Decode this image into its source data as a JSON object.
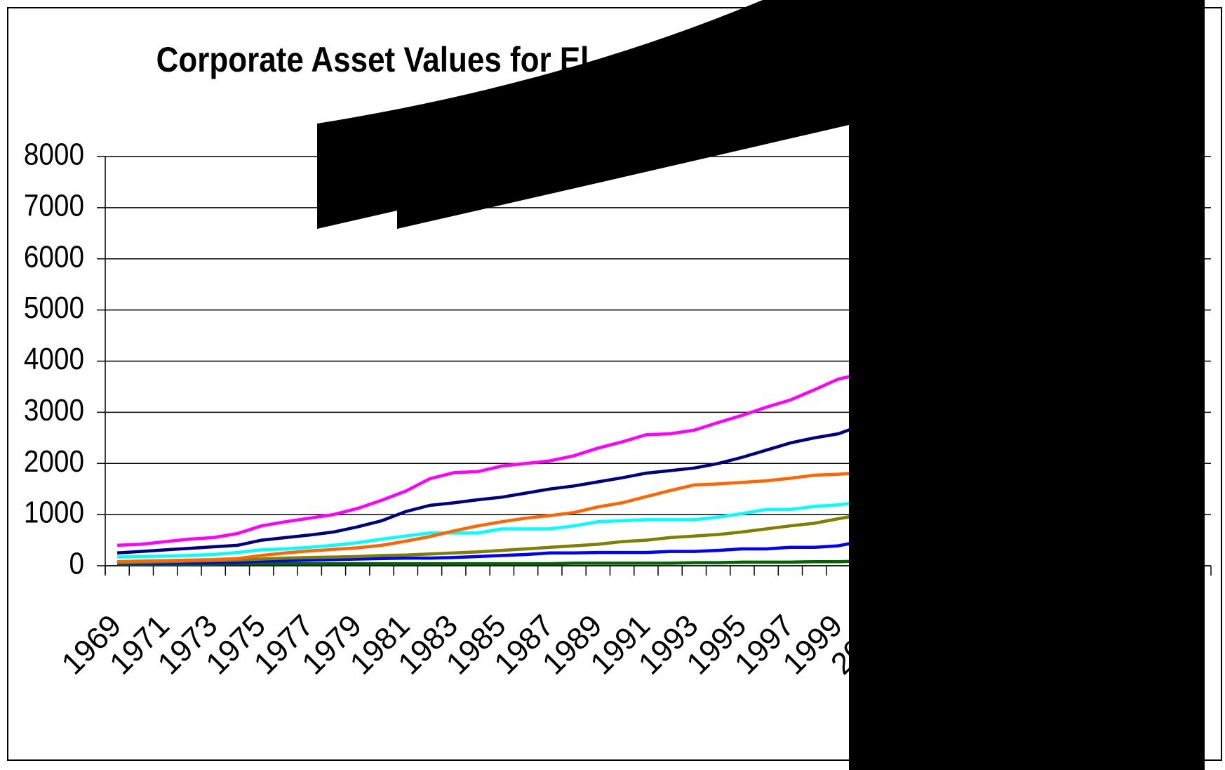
{
  "chart_data": {
    "type": "line",
    "title": "Corporate Asset Values for El",
    "categories": [
      "1969",
      null,
      "1971",
      null,
      "1973",
      null,
      "1975",
      null,
      "1977",
      null,
      "1979",
      null,
      "1981",
      null,
      "1983",
      null,
      "1985",
      null,
      "1987",
      null,
      "1989",
      null,
      "1991",
      null,
      "1993",
      null,
      "1995",
      null,
      "1997",
      null,
      "1999",
      null,
      "2001",
      null,
      null,
      null,
      null,
      null,
      null,
      null,
      null,
      null,
      null,
      null,
      null,
      null
    ],
    "series": [
      {
        "color": "#ff00ff",
        "values": [
          400,
          420,
          470,
          520,
          550,
          630,
          780,
          860,
          930,
          1000,
          1120,
          1280,
          1460,
          1700,
          1820,
          1840,
          1950,
          2000,
          2050,
          2150,
          2300,
          2420,
          2560,
          2580,
          2650,
          2800,
          2940,
          3100,
          3240,
          3440,
          3650,
          3750,
          null,
          null,
          null,
          null,
          null,
          null,
          null,
          null,
          null,
          null,
          null,
          null,
          null,
          null
        ]
      },
      {
        "color": "#000080",
        "values": [
          250,
          280,
          310,
          340,
          370,
          400,
          500,
          550,
          600,
          660,
          760,
          880,
          1060,
          1180,
          1230,
          1290,
          1340,
          1420,
          1500,
          1560,
          1640,
          1720,
          1810,
          1860,
          1910,
          2000,
          2120,
          2260,
          2400,
          2500,
          2580,
          2750,
          null,
          null,
          null,
          null,
          null,
          null,
          null,
          null,
          null,
          null,
          null,
          null,
          null,
          null
        ]
      },
      {
        "color": "#ff6600",
        "values": [
          80,
          90,
          100,
          110,
          120,
          140,
          200,
          250,
          290,
          320,
          350,
          400,
          480,
          570,
          680,
          780,
          860,
          930,
          980,
          1040,
          1150,
          1230,
          1350,
          1470,
          1580,
          1600,
          1630,
          1660,
          1710,
          1770,
          1790,
          1820,
          null,
          null,
          null,
          null,
          null,
          null,
          null,
          null,
          null,
          null,
          null,
          null,
          null,
          null
        ]
      },
      {
        "color": "#00ffff",
        "values": [
          170,
          180,
          190,
          200,
          220,
          260,
          310,
          330,
          360,
          400,
          450,
          520,
          580,
          640,
          640,
          640,
          720,
          720,
          720,
          780,
          860,
          880,
          900,
          900,
          900,
          950,
          1020,
          1100,
          1100,
          1160,
          1190,
          1250,
          null,
          null,
          null,
          null,
          null,
          null,
          null,
          null,
          null,
          null,
          null,
          null,
          null,
          null
        ]
      },
      {
        "color": "#808000",
        "values": [
          60,
          70,
          80,
          90,
          100,
          110,
          130,
          150,
          160,
          170,
          180,
          200,
          210,
          230,
          250,
          270,
          300,
          330,
          360,
          390,
          420,
          470,
          500,
          550,
          580,
          610,
          660,
          720,
          780,
          830,
          920,
          1000,
          null,
          null,
          null,
          null,
          null,
          null,
          null,
          null,
          null,
          null,
          null,
          null,
          null,
          null
        ]
      },
      {
        "color": "#0000ff",
        "values": [
          50,
          50,
          50,
          60,
          60,
          70,
          90,
          100,
          110,
          120,
          130,
          140,
          150,
          150,
          160,
          180,
          200,
          220,
          250,
          250,
          260,
          260,
          260,
          280,
          280,
          300,
          330,
          330,
          360,
          360,
          390,
          480,
          null,
          null,
          null,
          null,
          null,
          null,
          null,
          null,
          null,
          null,
          null,
          null,
          null,
          null
        ]
      },
      {
        "color": "#006400",
        "values": [
          30,
          30,
          30,
          30,
          30,
          40,
          40,
          40,
          40,
          40,
          40,
          40,
          40,
          40,
          40,
          40,
          40,
          40,
          40,
          50,
          50,
          50,
          50,
          50,
          60,
          60,
          70,
          70,
          70,
          80,
          80,
          90,
          null,
          null,
          null,
          null,
          null,
          null,
          null,
          null,
          null,
          null,
          null,
          null,
          null,
          null
        ]
      }
    ],
    "ylim": [
      0,
      8000
    ],
    "yticks": [
      0,
      1000,
      2000,
      3000,
      4000,
      5000,
      6000,
      7000,
      8000
    ],
    "grid": true
  }
}
